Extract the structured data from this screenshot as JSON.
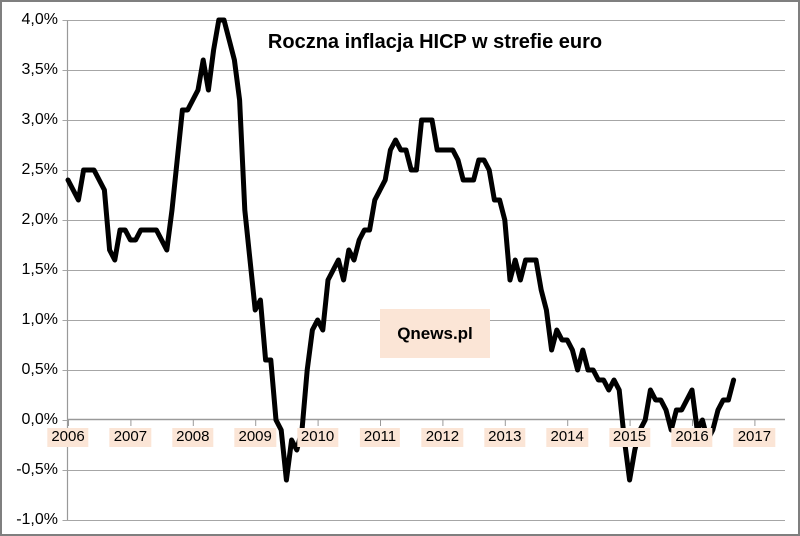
{
  "chart_data": {
    "type": "line",
    "title": "Roczna inflacja HICP w strefie euro",
    "watermark": "Qnews.pl",
    "grid": true,
    "legend": "none",
    "y_axis": {
      "unit": "%",
      "min": -1.0,
      "max": 4.0,
      "step": 0.5,
      "tick_labels": [
        "4,0%",
        "3,5%",
        "3,0%",
        "2,5%",
        "2,0%",
        "1,5%",
        "1,0%",
        "0,5%",
        "0,0%",
        "-0,5%",
        "-1,0%"
      ]
    },
    "x_axis": {
      "tick_labels": [
        "2006",
        "2007",
        "2008",
        "2009",
        "2010",
        "2011",
        "2012",
        "2013",
        "2014",
        "2015",
        "2016",
        "2017"
      ],
      "start_month": "2006-01",
      "end_month": "2016-09"
    },
    "series": [
      {
        "monthly_values": [
          2.4,
          2.3,
          2.2,
          2.5,
          2.5,
          2.5,
          2.4,
          2.3,
          1.7,
          1.6,
          1.9,
          1.9,
          1.8,
          1.8,
          1.9,
          1.9,
          1.9,
          1.9,
          1.8,
          1.7,
          2.1,
          2.6,
          3.1,
          3.1,
          3.2,
          3.3,
          3.6,
          3.3,
          3.7,
          4.0,
          4.0,
          3.8,
          3.6,
          3.2,
          2.1,
          1.6,
          1.1,
          1.2,
          0.6,
          0.6,
          0.0,
          -0.1,
          -0.6,
          -0.2,
          -0.3,
          -0.1,
          0.5,
          0.9,
          1.0,
          0.9,
          1.4,
          1.5,
          1.6,
          1.4,
          1.7,
          1.6,
          1.8,
          1.9,
          1.9,
          2.2,
          2.3,
          2.4,
          2.7,
          2.8,
          2.7,
          2.7,
          2.5,
          2.5,
          3.0,
          3.0,
          3.0,
          2.7,
          2.7,
          2.7,
          2.7,
          2.6,
          2.4,
          2.4,
          2.4,
          2.6,
          2.6,
          2.5,
          2.2,
          2.2,
          2.0,
          1.4,
          1.6,
          1.4,
          1.6,
          1.6,
          1.6,
          1.3,
          1.1,
          0.7,
          0.9,
          0.8,
          0.8,
          0.7,
          0.5,
          0.7,
          0.5,
          0.5,
          0.4,
          0.4,
          0.3,
          0.4,
          0.3,
          -0.2,
          -0.6,
          -0.3,
          -0.1,
          0.0,
          0.3,
          0.2,
          0.2,
          0.1,
          -0.1,
          0.1,
          0.1,
          0.2,
          0.3,
          -0.1,
          0.0,
          -0.2,
          -0.1,
          0.1,
          0.2,
          0.2,
          0.4
        ]
      }
    ],
    "colors": {
      "line": "#000000",
      "gridline": "#a6a6a6",
      "axis": "#999999",
      "label_highlight": "#fbe5d6",
      "border": "#7f7f7f",
      "background": "#ffffff",
      "text": "#000000"
    }
  }
}
